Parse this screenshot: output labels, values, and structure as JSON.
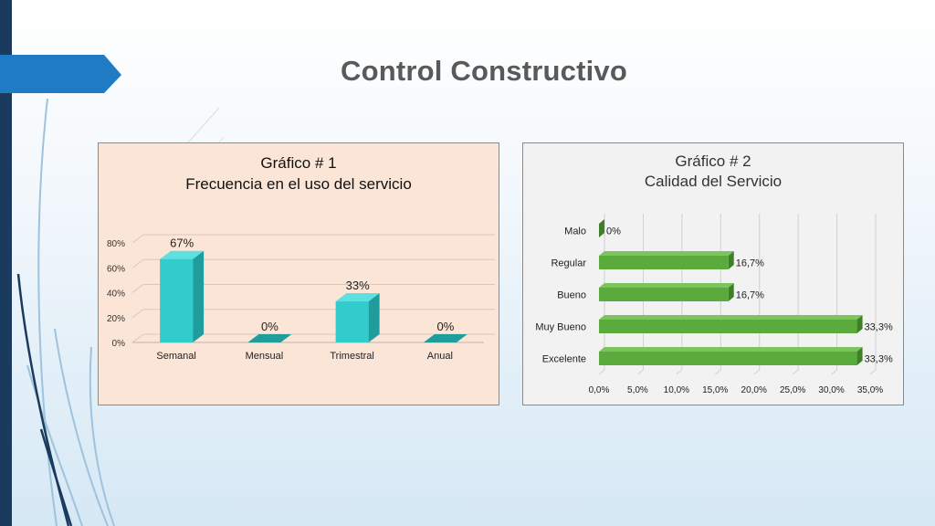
{
  "slide": {
    "title": "Control Constructivo"
  },
  "colors": {
    "accent": "#1f7cc4",
    "bar1": "#33cccc",
    "bar1_side": "#1f9c9c",
    "bar2": "#5aab3c",
    "bar2_side": "#3f7f28"
  },
  "chart_data": [
    {
      "type": "bar",
      "title": "Gráfico # 1",
      "subtitle": "Frecuencia en el uso del servicio",
      "categories": [
        "Semanal",
        "Mensual",
        "Trimestral",
        "Anual"
      ],
      "values": [
        67,
        0,
        33,
        0
      ],
      "data_labels": [
        "67%",
        "0%",
        "33%",
        "0%"
      ],
      "ytick_labels": [
        "0%",
        "20%",
        "40%",
        "60%",
        "80%"
      ],
      "ylim": [
        0,
        80
      ],
      "grid": true,
      "legend": "none"
    },
    {
      "type": "bar",
      "orientation": "horizontal",
      "title": "Gráfico # 2",
      "subtitle": "Calidad del Servicio",
      "categories": [
        "Malo",
        "Regular",
        "Bueno",
        "Muy Bueno",
        "Excelente"
      ],
      "values": [
        0,
        16.7,
        16.7,
        33.3,
        33.3
      ],
      "data_labels": [
        "0%",
        "16,7%",
        "16,7%",
        "33,3%",
        "33,3%"
      ],
      "xtick_labels": [
        "0,0%",
        "5,0%",
        "10,0%",
        "15,0%",
        "20,0%",
        "25,0%",
        "30,0%",
        "35,0%"
      ],
      "xlim": [
        0,
        35
      ],
      "grid": true,
      "legend": "none"
    }
  ]
}
